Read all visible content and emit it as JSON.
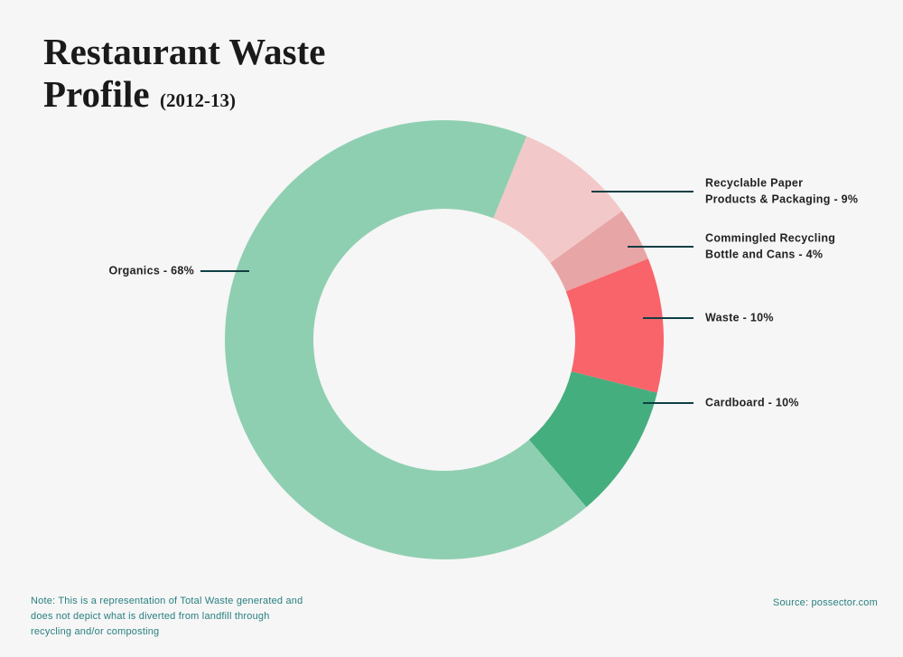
{
  "chart_data": {
    "type": "donut",
    "title": [
      "Restaurant Waste",
      "Profile"
    ],
    "subtitle": "(2012-13)",
    "categories": [
      [
        "Recyclable Paper",
        "Products & Packaging - 9%"
      ],
      [
        "Commingled Recycling",
        "Bottle and Cans - 4%"
      ],
      [
        "Waste - 10%"
      ],
      [
        "Cardboard - 10%"
      ],
      [
        "Organics - 68%"
      ]
    ],
    "values": [
      9,
      4,
      10,
      10,
      68
    ],
    "colors": [
      "#f2c9c8",
      "#e8a5a5",
      "#f9646b",
      "#45ae7e",
      "#8fcfb1"
    ],
    "note": [
      "Note: This is a representation of Total Waste generated and",
      "does not depict what is diverted from landfill through",
      "recycling and/or composting"
    ],
    "source": "Source: possector.com"
  }
}
